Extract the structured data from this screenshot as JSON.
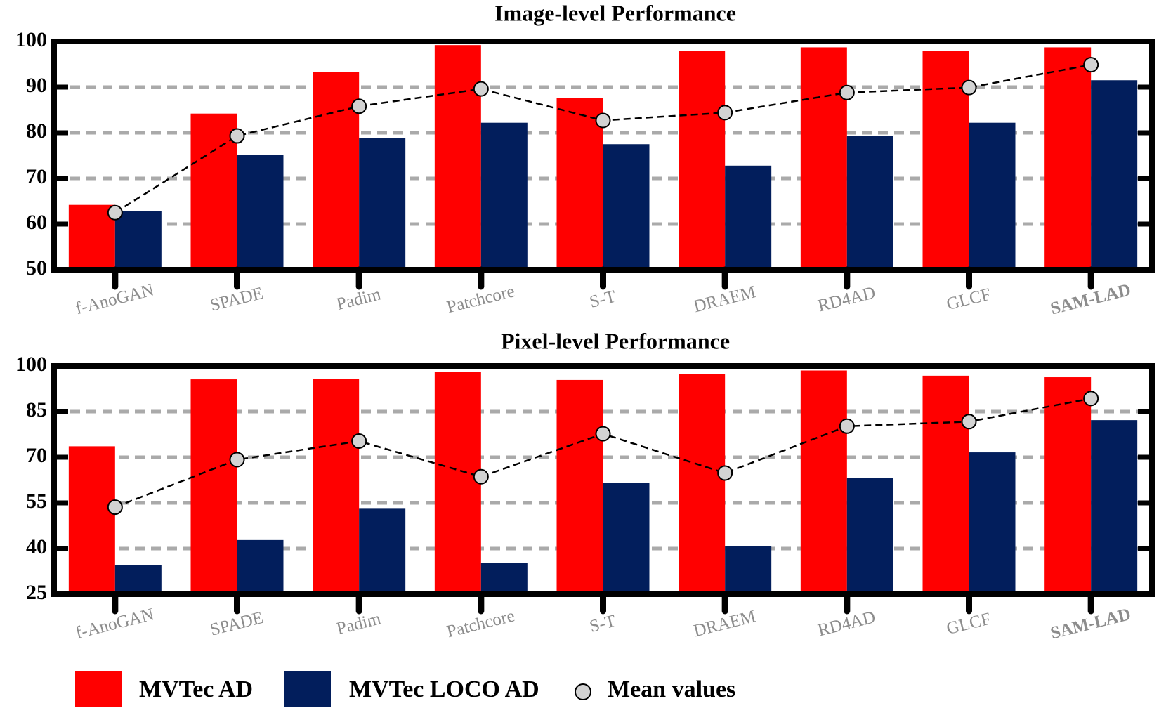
{
  "chart_data": [
    {
      "type": "bar",
      "title": "Image-level Performance",
      "categories": [
        "f-AnoGAN",
        "SPADE",
        "Padim",
        "Patchcore",
        "S-T",
        "DRAEM",
        "RD4AD",
        "GLCF",
        "SAM-LAD"
      ],
      "series": [
        {
          "name": "MVTec AD",
          "color": "#ff0000",
          "values": [
            64.2,
            84.2,
            93.3,
            99.2,
            87.6,
            97.9,
            98.7,
            97.9,
            98.7
          ]
        },
        {
          "name": "MVTec LOCO AD",
          "color": "#021e5c",
          "values": [
            62.9,
            75.2,
            78.8,
            82.2,
            77.5,
            72.8,
            79.3,
            82.2,
            91.5
          ]
        },
        {
          "name": "Mean values",
          "type": "line",
          "color": "#d3d3d3",
          "values": [
            62.5,
            79.3,
            85.8,
            89.6,
            82.7,
            84.4,
            88.8,
            89.9,
            94.9
          ]
        }
      ],
      "ylim": [
        50,
        100
      ],
      "yticks": [
        50,
        60,
        70,
        80,
        90,
        100
      ],
      "grid": true
    },
    {
      "type": "bar",
      "title": "Pixel-level Performance",
      "categories": [
        "f-AnoGAN",
        "SPADE",
        "Padim",
        "Patchcore",
        "S-T",
        "DRAEM",
        "RD4AD",
        "GLCF",
        "SAM-LAD"
      ],
      "series": [
        {
          "name": "MVTec AD",
          "color": "#ff0000",
          "values": [
            73.6,
            95.6,
            95.8,
            98.0,
            95.4,
            97.3,
            98.5,
            96.8,
            96.3
          ]
        },
        {
          "name": "MVTec LOCO AD",
          "color": "#021e5c",
          "values": [
            34.5,
            42.8,
            53.3,
            35.3,
            61.6,
            40.9,
            63.1,
            71.6,
            82.2
          ]
        },
        {
          "name": "Mean values",
          "type": "line",
          "color": "#d3d3d3",
          "values": [
            53.6,
            69.2,
            75.3,
            63.6,
            77.7,
            64.8,
            80.2,
            81.7,
            89.3
          ]
        }
      ],
      "ylim": [
        25,
        100
      ],
      "yticks": [
        25,
        40,
        55,
        70,
        85,
        100
      ],
      "grid": true
    }
  ]
}
